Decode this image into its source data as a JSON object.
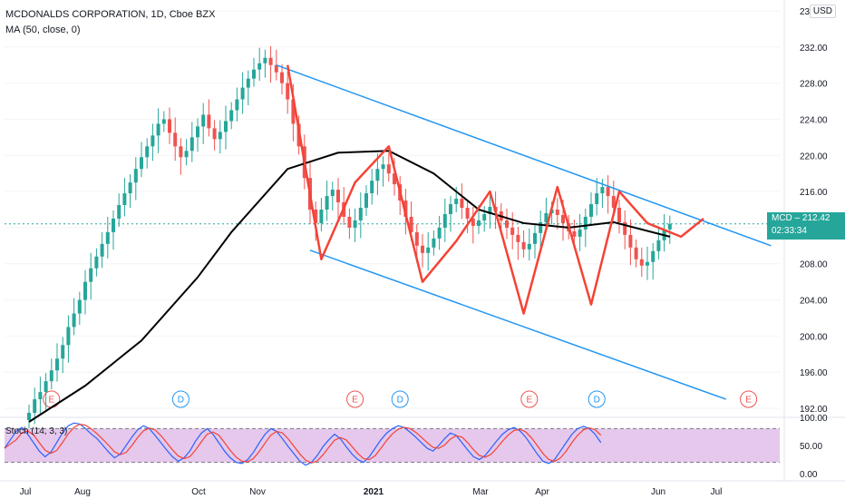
{
  "header": {
    "title": "MCDONALDS CORPORATION, 1D, Cboe BZX",
    "indicator": "MA (50, close, 0)",
    "stoch_label": "Stoch (14, 3, 3)"
  },
  "price_scale": {
    "currency": "USD",
    "ticks": [
      "236.00",
      "232.00",
      "228.00",
      "224.00",
      "220.00",
      "216.00",
      "212.00",
      "208.00",
      "204.00",
      "200.00",
      "196.00",
      "192.00"
    ],
    "tick_values": [
      236,
      232,
      228,
      224,
      220,
      216,
      212,
      208,
      204,
      200,
      196,
      192
    ],
    "last_label": "MCD",
    "last_price": "212.42",
    "countdown": "02:33:34",
    "stoch_ticks": [
      "100.00",
      "50.00",
      "0.00"
    ]
  },
  "time_axis": {
    "labels": [
      "Jul",
      "Aug",
      "Oct",
      "Nov",
      "2021",
      "Mar",
      "Apr",
      "Jun",
      "Jul"
    ]
  },
  "colors": {
    "up": "#26a69a",
    "down": "#ef5350",
    "ma": "#000000",
    "channel": "#2196f3",
    "pattern": "#f44336",
    "stoch_fill": "#e1bee7",
    "stoch_k": "#2962ff",
    "stoch_d": "#f44336"
  },
  "chart_data": {
    "type": "candlestick",
    "symbol": "MCD",
    "timeframe": "1D",
    "ylim": [
      191,
      237
    ],
    "closes": [
      191.5,
      193.0,
      193.8,
      195.0,
      196.2,
      197.5,
      199.0,
      201.0,
      202.5,
      204.0,
      206.0,
      207.5,
      208.8,
      210.2,
      211.5,
      213.0,
      214.5,
      215.8,
      217.0,
      218.5,
      219.8,
      221.0,
      222.2,
      223.5,
      224.0,
      222.5,
      221.0,
      219.8,
      220.5,
      222.0,
      223.2,
      224.5,
      223.0,
      221.8,
      222.6,
      223.8,
      225.0,
      226.2,
      227.5,
      228.5,
      229.5,
      230.2,
      230.8,
      230.0,
      229.2,
      228.0,
      226.2,
      223.5,
      221.0,
      217.5,
      214.0,
      212.5,
      214.0,
      215.5,
      216.2,
      214.8,
      213.2,
      212.0,
      212.8,
      214.2,
      215.8,
      217.2,
      218.5,
      219.0,
      218.0,
      216.8,
      215.0,
      213.2,
      211.5,
      210.0,
      209.2,
      209.8,
      210.8,
      212.0,
      213.5,
      214.6,
      215.2,
      214.2,
      213.0,
      212.2,
      212.8,
      213.5,
      214.3,
      213.8,
      212.8,
      212.0,
      211.2,
      210.4,
      209.6,
      210.2,
      211.4,
      212.6,
      213.6,
      214.0,
      213.4,
      212.5,
      211.6,
      211.0,
      211.8,
      213.2,
      214.6,
      215.8,
      216.5,
      215.5,
      214.2,
      212.6,
      211.2,
      209.8,
      208.5,
      207.8,
      208.2,
      209.4,
      210.6,
      211.8,
      212.42
    ],
    "ma50_approx": {
      "x_index": [
        0,
        10,
        20,
        30,
        36,
        46,
        55,
        64,
        72,
        80,
        88,
        96,
        104,
        114
      ],
      "values": [
        190.5,
        194.5,
        199.5,
        206.5,
        211.5,
        218.5,
        220.3,
        220.5,
        218.0,
        214.0,
        212.5,
        212.0,
        212.6,
        211.0
      ]
    },
    "channel": {
      "upper": [
        [
          44,
          230.0
        ],
        [
          132,
          210.0
        ]
      ],
      "lower": [
        [
          50,
          209.5
        ],
        [
          124,
          193.0
        ]
      ]
    },
    "zigzag_pattern": {
      "x_index": [
        46,
        52,
        58,
        64,
        70,
        76,
        82,
        88,
        94,
        100,
        105,
        110,
        116,
        120
      ],
      "values": [
        230.0,
        208.5,
        217.0,
        221.0,
        206.0,
        210.5,
        216.0,
        202.5,
        216.5,
        203.5,
        216.0,
        212.5,
        211.0,
        213.0
      ]
    },
    "event_markers": [
      {
        "x_index": 4,
        "label": "E"
      },
      {
        "x_index": 27,
        "label": "D"
      },
      {
        "x_index": 58,
        "label": "E"
      },
      {
        "x_index": 66,
        "label": "D"
      },
      {
        "x_index": 89,
        "label": "E"
      },
      {
        "x_index": 101,
        "label": "D"
      },
      {
        "x_index": 128,
        "label": "E"
      }
    ],
    "stochastic": {
      "ylim": [
        0,
        100
      ],
      "upper_band": 80,
      "lower_band": 20,
      "k_values": [
        45,
        60,
        75,
        82,
        70,
        55,
        40,
        30,
        38,
        55,
        72,
        85,
        90,
        88,
        80,
        70,
        62,
        50,
        38,
        28,
        35,
        50,
        65,
        78,
        85,
        80,
        68,
        55,
        42,
        30,
        22,
        28,
        40,
        58,
        72,
        80,
        70,
        55,
        40,
        28,
        20,
        18,
        25,
        38,
        55,
        70,
        80,
        75,
        62,
        48,
        35,
        22,
        15,
        20,
        32,
        48,
        60,
        70,
        62,
        48,
        35,
        25,
        20,
        30,
        45,
        60,
        72,
        80,
        85,
        82,
        74,
        65,
        55,
        45,
        40,
        50,
        62,
        72,
        68,
        55,
        42,
        30,
        25,
        32,
        45,
        58,
        70,
        78,
        82,
        76,
        65,
        50,
        35,
        22,
        18,
        25,
        40,
        55,
        70,
        80,
        84,
        80,
        70,
        55
      ]
    }
  }
}
